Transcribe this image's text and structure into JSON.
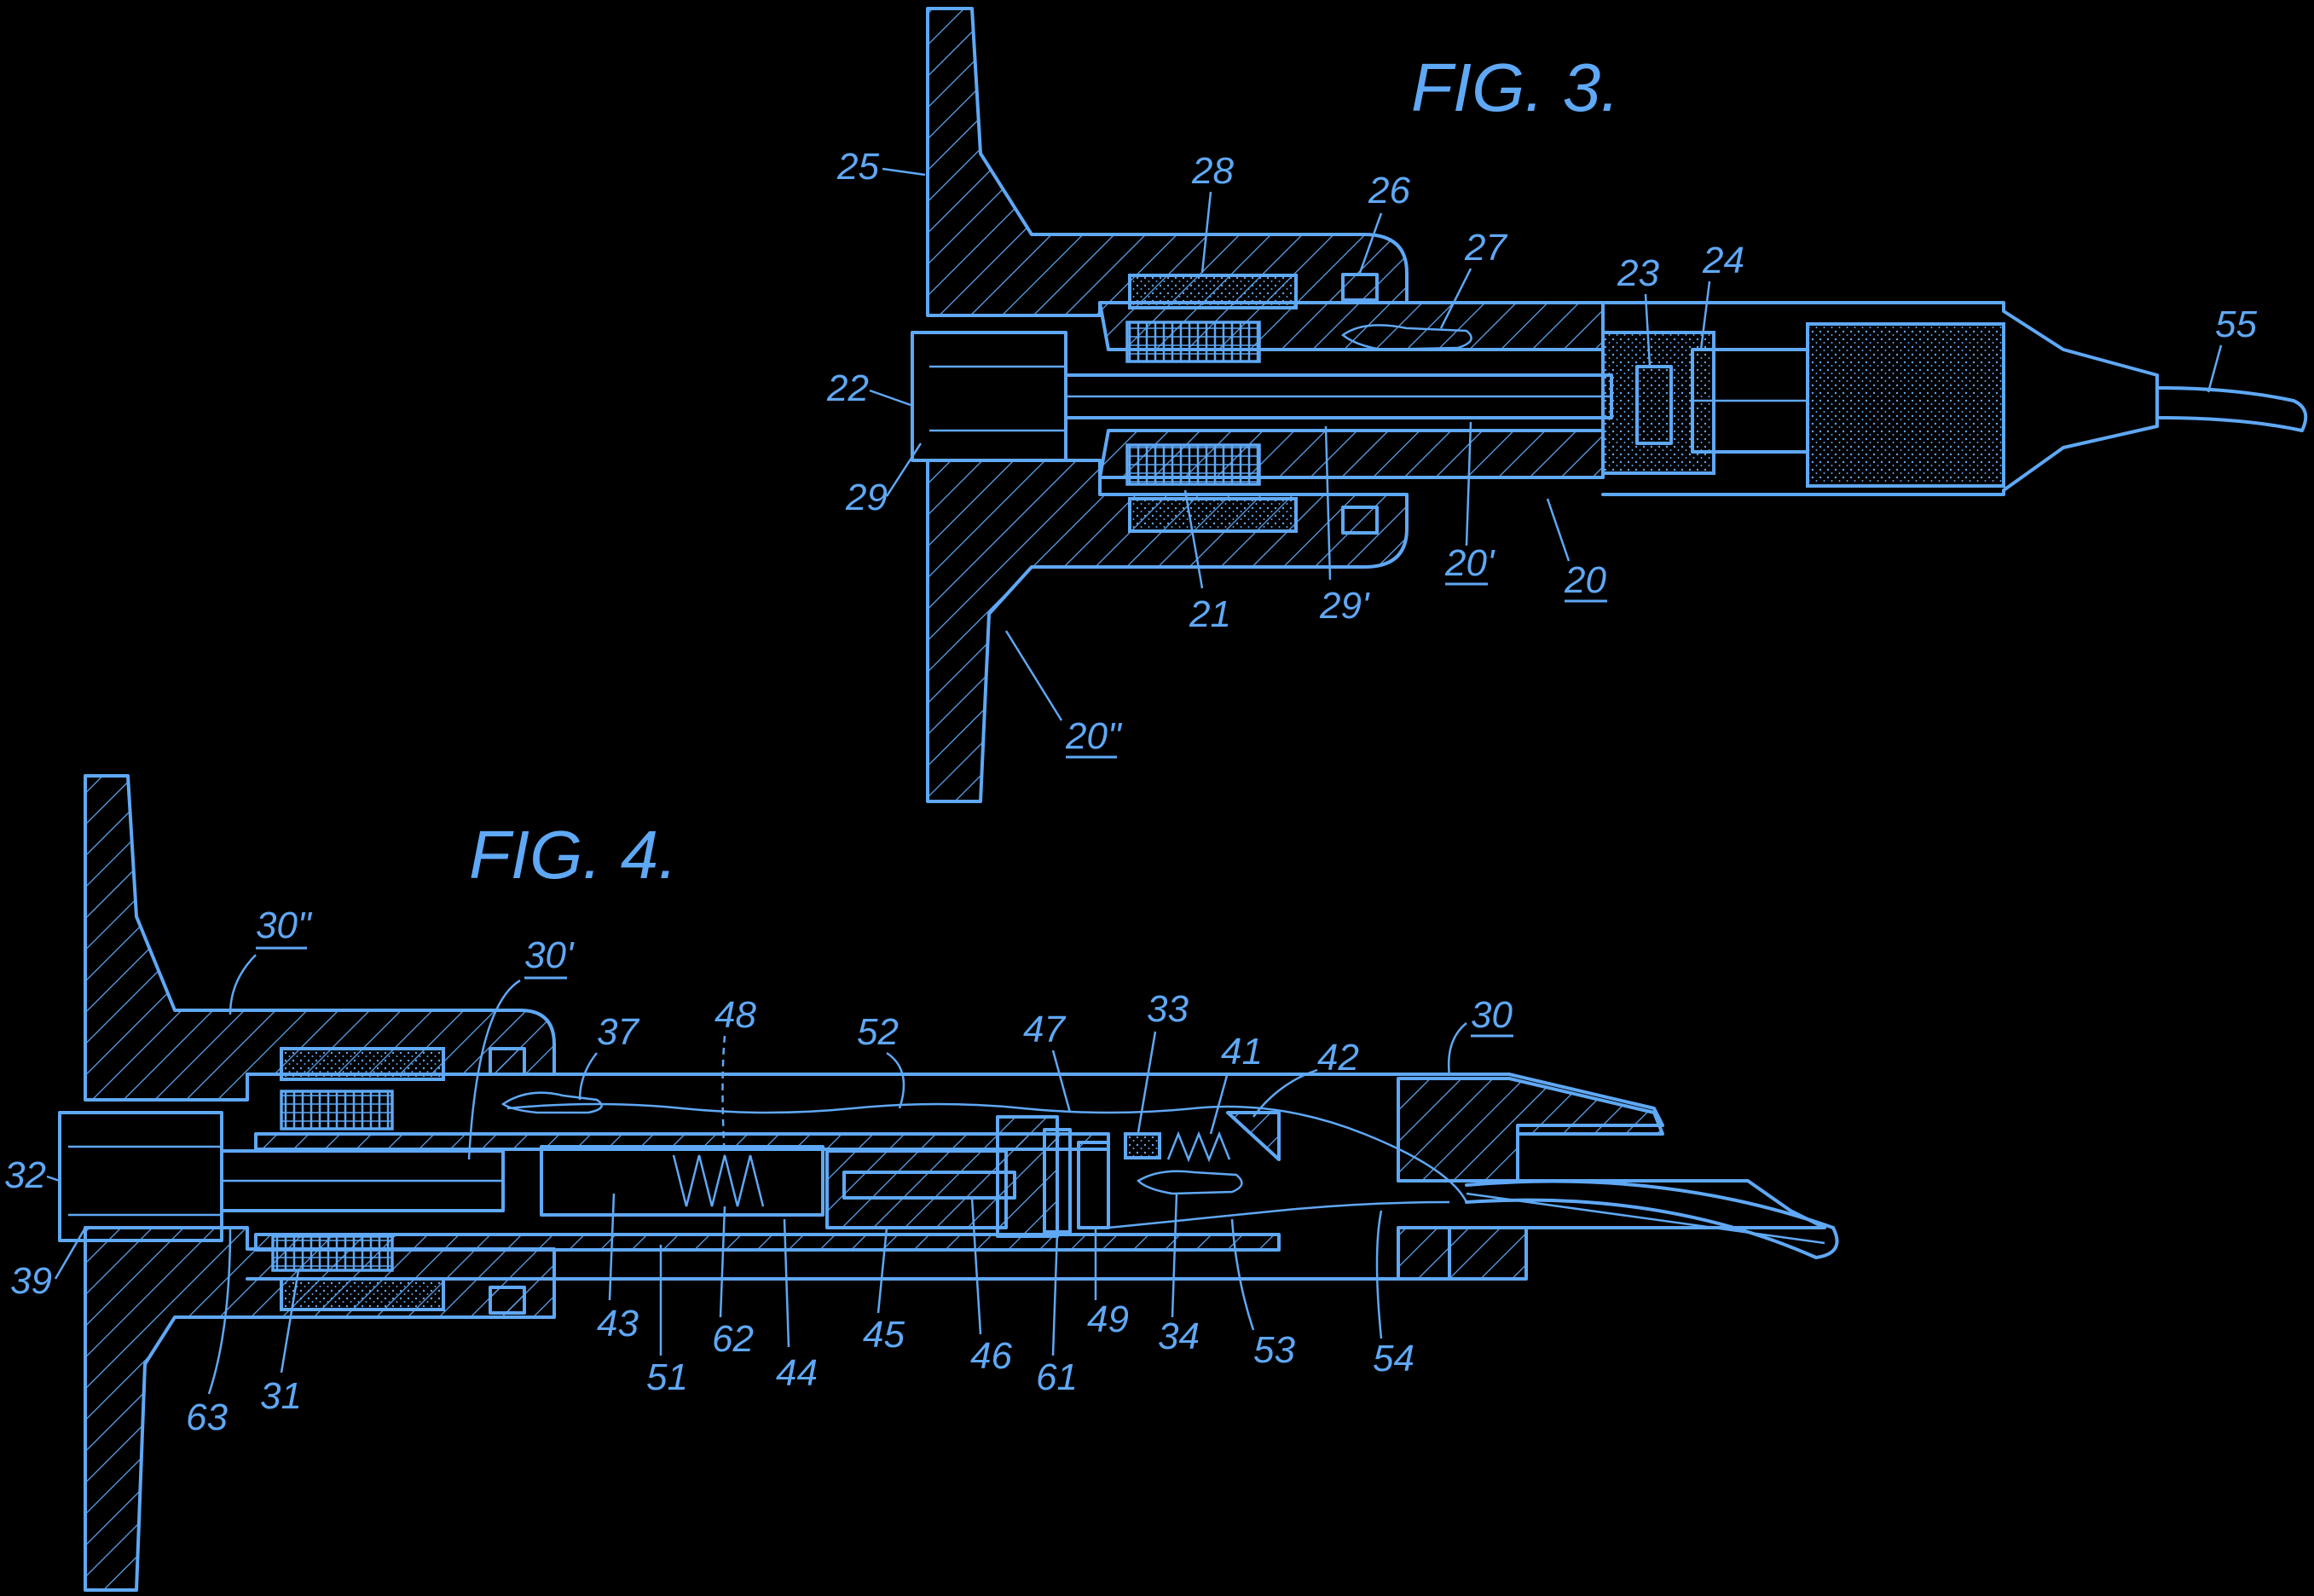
{
  "figures": {
    "fig3": {
      "title": "FIG. 3.",
      "labels": [
        "25",
        "28",
        "26",
        "27",
        "23",
        "24",
        "55",
        "22",
        "29",
        "21",
        "29'",
        "20'",
        "20",
        "20\""
      ]
    },
    "fig4": {
      "title": "FIG. 4.",
      "labels": [
        "30\"",
        "30'",
        "37",
        "48",
        "52",
        "47",
        "33",
        "41",
        "42",
        "30",
        "32",
        "39",
        "63",
        "31",
        "43",
        "51",
        "62",
        "44",
        "45",
        "46",
        "61",
        "49",
        "34",
        "53",
        "54"
      ]
    }
  },
  "colors": {
    "background": "#000000",
    "line": "#5fa8f5"
  }
}
